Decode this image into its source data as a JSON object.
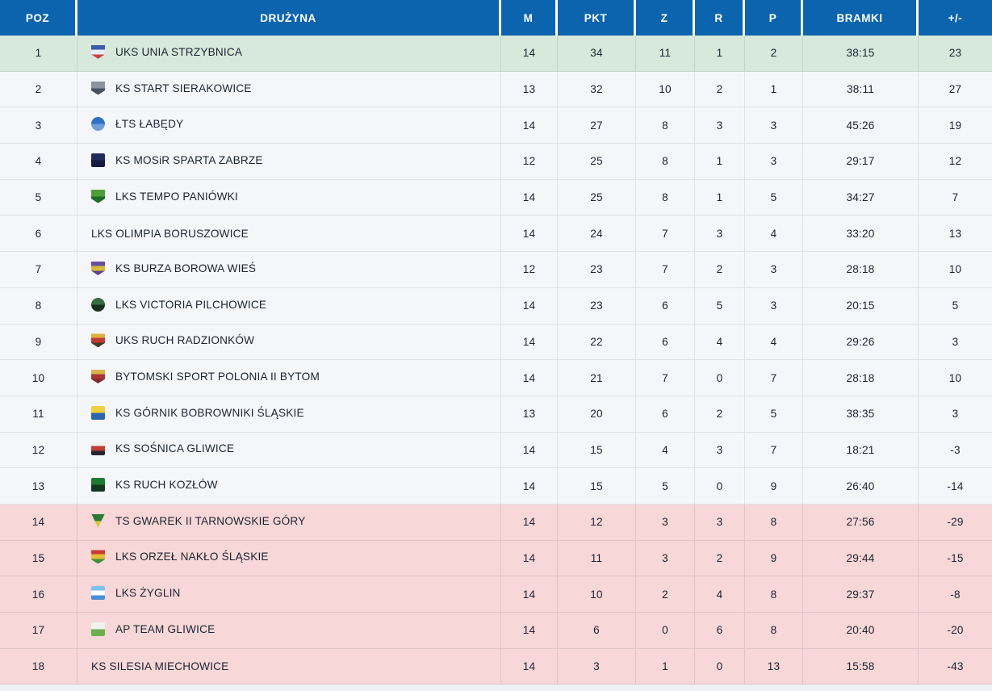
{
  "table": {
    "columns": [
      {
        "key": "poz",
        "label": "POZ"
      },
      {
        "key": "team",
        "label": "DRUŻYNA"
      },
      {
        "key": "m",
        "label": "M"
      },
      {
        "key": "pkt",
        "label": "PKT"
      },
      {
        "key": "z",
        "label": "Z"
      },
      {
        "key": "r",
        "label": "R"
      },
      {
        "key": "p",
        "label": "P"
      },
      {
        "key": "bramki",
        "label": "BRAMKI"
      },
      {
        "key": "diff",
        "label": "+/-"
      }
    ],
    "rows": [
      {
        "poz": "1",
        "team": "UKS UNIA STRZYBNICA",
        "m": "14",
        "pkt": "34",
        "z": "11",
        "r": "1",
        "p": "2",
        "bramki": "38:15",
        "diff": "23",
        "highlight": "promotion",
        "logo": {
          "shape": "shield",
          "colors": [
            "#3d5ba9",
            "#e8ecf5",
            "#cc4444"
          ]
        }
      },
      {
        "poz": "2",
        "team": "KS START SIERAKOWICE",
        "m": "13",
        "pkt": "32",
        "z": "10",
        "r": "2",
        "p": "1",
        "bramki": "38:11",
        "diff": "27",
        "highlight": null,
        "logo": {
          "shape": "shield",
          "colors": [
            "#8d939e",
            "#49505f"
          ]
        }
      },
      {
        "poz": "3",
        "team": "ŁTS ŁABĘDY",
        "m": "14",
        "pkt": "27",
        "z": "8",
        "r": "3",
        "p": "3",
        "bramki": "45:26",
        "diff": "19",
        "highlight": null,
        "logo": {
          "shape": "circle",
          "colors": [
            "#2d72c4",
            "#6d9fd8"
          ]
        }
      },
      {
        "poz": "4",
        "team": "KS MOSiR SPARTA ZABRZE",
        "m": "12",
        "pkt": "25",
        "z": "8",
        "r": "1",
        "p": "3",
        "bramki": "29:17",
        "diff": "12",
        "highlight": null,
        "logo": {
          "shape": "square",
          "colors": [
            "#232a5c",
            "#131a3e"
          ]
        }
      },
      {
        "poz": "5",
        "team": "LKS TEMPO PANIÓWKI",
        "m": "14",
        "pkt": "25",
        "z": "8",
        "r": "1",
        "p": "5",
        "bramki": "34:27",
        "diff": "7",
        "highlight": null,
        "logo": {
          "shape": "shield",
          "colors": [
            "#4f9e3c",
            "#1f6b2a"
          ]
        }
      },
      {
        "poz": "6",
        "team": "LKS OLIMPIA BORUSZOWICE",
        "m": "14",
        "pkt": "24",
        "z": "7",
        "r": "3",
        "p": "4",
        "bramki": "33:20",
        "diff": "13",
        "highlight": null,
        "logo": null
      },
      {
        "poz": "7",
        "team": "KS BURZA BOROWA WIEŚ",
        "m": "12",
        "pkt": "23",
        "z": "7",
        "r": "2",
        "p": "3",
        "bramki": "28:18",
        "diff": "10",
        "highlight": null,
        "logo": {
          "shape": "shield",
          "colors": [
            "#6a4e9e",
            "#d9b93a",
            "#5c4390"
          ]
        }
      },
      {
        "poz": "8",
        "team": "LKS VICTORIA PILCHOWICE",
        "m": "14",
        "pkt": "23",
        "z": "6",
        "r": "5",
        "p": "3",
        "bramki": "20:15",
        "diff": "5",
        "highlight": null,
        "logo": {
          "shape": "circle",
          "colors": [
            "#3a6b44",
            "#17301d"
          ]
        }
      },
      {
        "poz": "9",
        "team": "UKS RUCH RADZIONKÓW",
        "m": "14",
        "pkt": "22",
        "z": "6",
        "r": "4",
        "p": "4",
        "bramki": "29:26",
        "diff": "3",
        "highlight": null,
        "logo": {
          "shape": "shield",
          "colors": [
            "#ddb23e",
            "#bf3a34",
            "#433a22"
          ]
        }
      },
      {
        "poz": "10",
        "team": "BYTOMSKI SPORT POLONIA II BYTOM",
        "m": "14",
        "pkt": "21",
        "z": "7",
        "r": "0",
        "p": "7",
        "bramki": "28:18",
        "diff": "10",
        "highlight": null,
        "logo": {
          "shape": "shield",
          "colors": [
            "#d8b34a",
            "#a83434",
            "#7d2b2b"
          ]
        }
      },
      {
        "poz": "11",
        "team": "KS GÓRNIK BOBROWNIKI ŚLĄSKIE",
        "m": "13",
        "pkt": "20",
        "z": "6",
        "r": "2",
        "p": "5",
        "bramki": "38:35",
        "diff": "3",
        "highlight": null,
        "logo": {
          "shape": "square",
          "colors": [
            "#ecd13e",
            "#2c66ae"
          ]
        }
      },
      {
        "poz": "12",
        "team": "KS SOŚNICA GLIWICE",
        "m": "14",
        "pkt": "15",
        "z": "4",
        "r": "3",
        "p": "7",
        "bramki": "18:21",
        "diff": "-3",
        "highlight": null,
        "logo": {
          "shape": "square",
          "colors": [
            "#f2f2f2",
            "#c23b35",
            "#23262e"
          ]
        }
      },
      {
        "poz": "13",
        "team": "KS RUCH KOZŁÓW",
        "m": "14",
        "pkt": "15",
        "z": "5",
        "r": "0",
        "p": "9",
        "bramki": "26:40",
        "diff": "-14",
        "highlight": null,
        "logo": {
          "shape": "square",
          "colors": [
            "#1d7a33",
            "#123820"
          ]
        }
      },
      {
        "poz": "14",
        "team": "TS GWAREK II TARNOWSKIE GÓRY",
        "m": "14",
        "pkt": "12",
        "z": "3",
        "r": "3",
        "p": "8",
        "bramki": "27:56",
        "diff": "-29",
        "highlight": "relegation",
        "logo": {
          "shape": "pennant",
          "colors": [
            "#2e7a34",
            "#d8cb3a"
          ]
        }
      },
      {
        "poz": "15",
        "team": "LKS ORZEŁ NAKŁO ŚLĄSKIE",
        "m": "14",
        "pkt": "11",
        "z": "3",
        "r": "2",
        "p": "9",
        "bramki": "29:44",
        "diff": "-15",
        "highlight": "relegation",
        "logo": {
          "shape": "shield",
          "colors": [
            "#cc3a35",
            "#e3bd3c",
            "#3f8f3a"
          ]
        }
      },
      {
        "poz": "16",
        "team": "LKS ŻYGLIN",
        "m": "14",
        "pkt": "10",
        "z": "2",
        "r": "4",
        "p": "8",
        "bramki": "29:37",
        "diff": "-8",
        "highlight": "relegation",
        "logo": {
          "shape": "square",
          "colors": [
            "#7fc2ec",
            "#ffffff",
            "#4a90d0"
          ]
        }
      },
      {
        "poz": "17",
        "team": "AP TEAM GLIWICE",
        "m": "14",
        "pkt": "6",
        "z": "0",
        "r": "6",
        "p": "8",
        "bramki": "20:40",
        "diff": "-20",
        "highlight": "relegation",
        "logo": {
          "shape": "square",
          "colors": [
            "#eef3ee",
            "#6fae4e"
          ]
        }
      },
      {
        "poz": "18",
        "team": "KS SILESIA MIECHOWICE",
        "m": "14",
        "pkt": "3",
        "z": "1",
        "r": "0",
        "p": "13",
        "bramki": "15:58",
        "diff": "-43",
        "highlight": "relegation",
        "logo": null
      }
    ]
  },
  "colors": {
    "header_bg": "#0c64ae",
    "header_text": "#ffffff",
    "row_bg": "#f5f6f9",
    "promotion_bg": "#d6e9da",
    "relegation_bg": "#f7d7d7",
    "bottom_strip": "#edf0f7",
    "text": "#1c2433"
  }
}
